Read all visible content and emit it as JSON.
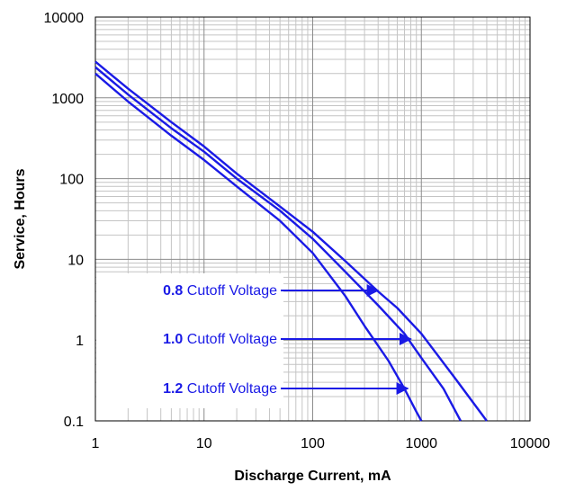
{
  "chart_data": {
    "type": "line",
    "xlabel": "Discharge Current, mA",
    "ylabel": "Service, Hours",
    "x_scale": "log",
    "y_scale": "log",
    "xlim": [
      1,
      10000
    ],
    "ylim": [
      0.1,
      10000
    ],
    "x_ticks": [
      "1",
      "10",
      "100",
      "1000",
      "10000"
    ],
    "y_ticks": [
      "10000",
      "1000",
      "100",
      "10",
      "1",
      "0.1"
    ],
    "grid": true,
    "line_color": "#1a1ae6",
    "series": [
      {
        "name": "0.8 Cutoff Voltage",
        "x": [
          1,
          2,
          5,
          10,
          20,
          50,
          100,
          200,
          400,
          600,
          1000,
          2000,
          4000
        ],
        "y": [
          2800,
          1300,
          500,
          250,
          115,
          45,
          22,
          9.5,
          4,
          2.5,
          1.2,
          0.35,
          0.1
        ]
      },
      {
        "name": "1.0 Cutoff Voltage",
        "x": [
          1,
          2,
          5,
          10,
          20,
          50,
          100,
          200,
          400,
          700,
          1000,
          1600,
          2300
        ],
        "y": [
          2400,
          1100,
          420,
          215,
          100,
          40,
          18,
          7,
          2.7,
          1.2,
          0.6,
          0.25,
          0.1
        ]
      },
      {
        "name": "1.2 Cutoff Voltage",
        "x": [
          1,
          2,
          5,
          10,
          20,
          50,
          100,
          200,
          300,
          500,
          700,
          900,
          1000
        ],
        "y": [
          2000,
          900,
          340,
          170,
          80,
          30,
          12,
          3.5,
          1.5,
          0.55,
          0.25,
          0.13,
          0.1
        ]
      }
    ],
    "annotations": [
      {
        "bold": "0.8",
        "text": " Cutoff Voltage",
        "target": [
          400,
          4.4
        ]
      },
      {
        "bold": "1.0",
        "text": " Cutoff Voltage",
        "target": [
          800,
          1.05
        ]
      },
      {
        "bold": "1.2",
        "text": " Cutoff Voltage",
        "target": [
          750,
          0.27
        ]
      }
    ]
  }
}
